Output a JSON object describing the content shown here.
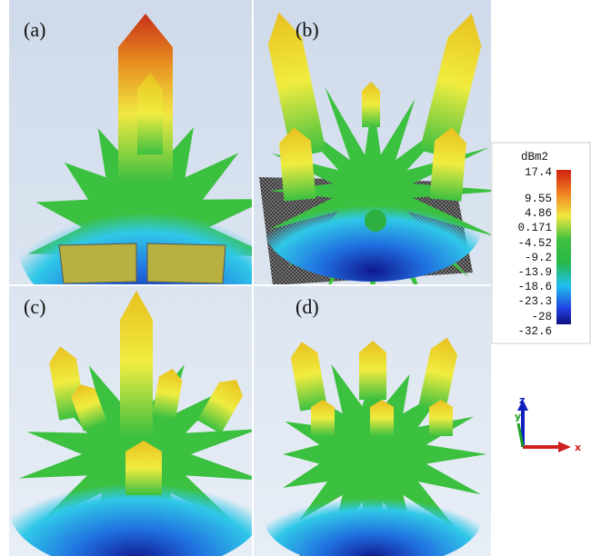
{
  "panels": [
    {
      "label": "(a)"
    },
    {
      "label": "(b)"
    },
    {
      "label": "(c)"
    },
    {
      "label": "(d)"
    }
  ],
  "colorbar": {
    "title": "dBm2",
    "labels": [
      "17.4",
      "9.55",
      "4.86",
      "0.171",
      "-4.52",
      "-9.2",
      "-13.9",
      "-18.6",
      "-23.3",
      "-28",
      "-32.6"
    ]
  },
  "axes": {
    "z": "z",
    "y": "y",
    "x": "x"
  }
}
